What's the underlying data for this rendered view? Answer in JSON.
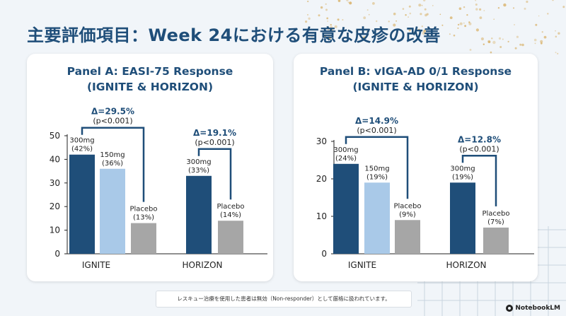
{
  "page": {
    "title": "主要評価項目：Week 24における有意な皮疹の改善",
    "footnote": "レスキュー治療を使用した患者は無効（Non-responder）として厳格に扱われています。",
    "brand": "NotebookLM"
  },
  "colors": {
    "dose300": "#1f4e79",
    "dose150": "#a9c9e8",
    "placebo": "#a6a6a6",
    "title": "#1f4e79",
    "dots": "#d9b36c",
    "grid": "#c9d5df"
  },
  "panels": [
    {
      "title_line1": "Panel A: EASI-75 Response",
      "title_line2": "(IGNITE & HORIZON)"
    },
    {
      "title_line1": "Panel B: vIGA-AD 0/1 Response",
      "title_line2": "(IGNITE & HORIZON)"
    }
  ],
  "chart_data": [
    {
      "type": "bar",
      "title": "Panel A: EASI-75 Response (IGNITE & HORIZON)",
      "categories": [
        "IGNITE",
        "HORIZON"
      ],
      "ylim": [
        0,
        50
      ],
      "yticks": [
        0,
        10,
        20,
        30,
        40,
        50
      ],
      "ylabel": "",
      "xlabel": "",
      "bars": [
        {
          "group": 0,
          "dose": "300mg",
          "value": 42,
          "label1": "300mg",
          "label2": "(42%)",
          "color_key": "dose300"
        },
        {
          "group": 0,
          "dose": "150mg",
          "value": 36,
          "label1": "150mg",
          "label2": "(36%)",
          "color_key": "dose150"
        },
        {
          "group": 0,
          "dose": "Placebo",
          "value": 13,
          "label1": "Placebo",
          "label2": "(13%)",
          "color_key": "placebo"
        },
        {
          "group": 1,
          "dose": "300mg",
          "value": 33,
          "label1": "300mg",
          "label2": "(33%)",
          "color_key": "dose300"
        },
        {
          "group": 1,
          "dose": "Placebo",
          "value": 14,
          "label1": "Placebo",
          "label2": "(14%)",
          "color_key": "placebo"
        }
      ],
      "deltas": [
        {
          "group": 0,
          "delta": "Δ=29.5%",
          "p": "(p<0.001)",
          "from": 0,
          "to": 2
        },
        {
          "group": 1,
          "delta": "Δ=19.1%",
          "p": "(p<0.001)",
          "from": 3,
          "to": 4
        }
      ]
    },
    {
      "type": "bar",
      "title": "Panel B: vIGA-AD 0/1 Response (IGNITE & HORIZON)",
      "categories": [
        "IGNITE",
        "HORIZON"
      ],
      "ylim": [
        0,
        30
      ],
      "yticks": [
        0,
        10,
        20,
        30
      ],
      "ylabel": "",
      "xlabel": "",
      "bars": [
        {
          "group": 0,
          "dose": "300mg",
          "value": 24,
          "label1": "300mg",
          "label2": "(24%)",
          "color_key": "dose300"
        },
        {
          "group": 0,
          "dose": "150mg",
          "value": 19,
          "label1": "150mg",
          "label2": "(19%)",
          "color_key": "dose150"
        },
        {
          "group": 0,
          "dose": "Placebo",
          "value": 9,
          "label1": "Placebo",
          "label2": "(9%)",
          "color_key": "placebo"
        },
        {
          "group": 1,
          "dose": "300mg",
          "value": 19,
          "label1": "300mg",
          "label2": "(19%)",
          "color_key": "dose300"
        },
        {
          "group": 1,
          "dose": "Placebo",
          "value": 7,
          "label1": "Placebo",
          "label2": "(7%)",
          "color_key": "placebo"
        }
      ],
      "deltas": [
        {
          "group": 0,
          "delta": "Δ=14.9%",
          "p": "(p<0.001)",
          "from": 0,
          "to": 2
        },
        {
          "group": 1,
          "delta": "Δ=12.8%",
          "p": "(p<0.001)",
          "from": 3,
          "to": 4
        }
      ]
    }
  ]
}
